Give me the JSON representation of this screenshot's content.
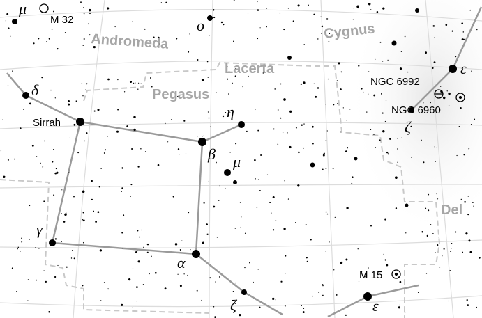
{
  "constellations": [
    "Andromeda",
    "Cygnus",
    "Lacerta",
    "Pegasus",
    "Del"
  ],
  "stars": [
    "μ",
    "o",
    "ε",
    "δ",
    "η",
    "Sirrah",
    "ζ",
    "β",
    "μ",
    "γ",
    "α",
    "ζ",
    "ε"
  ],
  "objects": [
    "M 32",
    "NGC 6992",
    "NGC 6960",
    "M 15"
  ]
}
